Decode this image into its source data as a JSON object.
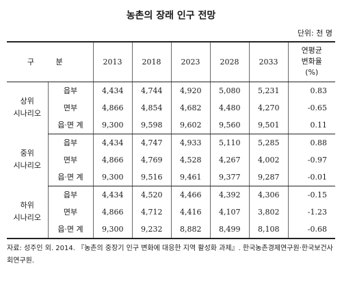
{
  "title": "농촌의 장래 인구 전망",
  "unit": "단위: 천 명",
  "header": {
    "group": "구 분",
    "years": [
      "2013",
      "2018",
      "2023",
      "2028",
      "2033"
    ],
    "rate": [
      "연평균",
      "변화율",
      "(%)"
    ]
  },
  "scenarios": [
    {
      "name": [
        "상위",
        "시나리오"
      ],
      "rows": [
        {
          "label": "읍부",
          "values": [
            "4,434",
            "4,744",
            "4,920",
            "5,080",
            "5,231",
            "0.83"
          ]
        },
        {
          "label": "면부",
          "values": [
            "4,866",
            "4,854",
            "4,682",
            "4,480",
            "4,270",
            "-0.65"
          ]
        },
        {
          "label": "읍·면 계",
          "values": [
            "9,300",
            "9,598",
            "9,602",
            "9,560",
            "9,501",
            "0.11"
          ]
        }
      ]
    },
    {
      "name": [
        "중위",
        "시나리오"
      ],
      "rows": [
        {
          "label": "읍부",
          "values": [
            "4,434",
            "4,747",
            "4,933",
            "5,110",
            "5,285",
            "0.88"
          ]
        },
        {
          "label": "면부",
          "values": [
            "4,866",
            "4,769",
            "4,528",
            "4,267",
            "4,002",
            "-0.97"
          ]
        },
        {
          "label": "읍·면 계",
          "values": [
            "9,300",
            "9,516",
            "9,461",
            "9,377",
            "9,287",
            "-0.01"
          ]
        }
      ]
    },
    {
      "name": [
        "하위",
        "시나리오"
      ],
      "rows": [
        {
          "label": "읍부",
          "values": [
            "4,434",
            "4,520",
            "4,466",
            "4,392",
            "4,306",
            "-0.15"
          ]
        },
        {
          "label": "면부",
          "values": [
            "4,866",
            "4,712",
            "4,416",
            "4,107",
            "3,802",
            "-1.23"
          ]
        },
        {
          "label": "읍·면 계",
          "values": [
            "9,300",
            "9,232",
            "8,882",
            "8,499",
            "8,108",
            "-0.68"
          ]
        }
      ]
    }
  ],
  "source": "자료: 성주인 외. 2014. 『농촌의 중장기 인구 변화에 대응한 지역 활성화 과제』. 한국농촌경제연구원·한국보건사회연구원."
}
